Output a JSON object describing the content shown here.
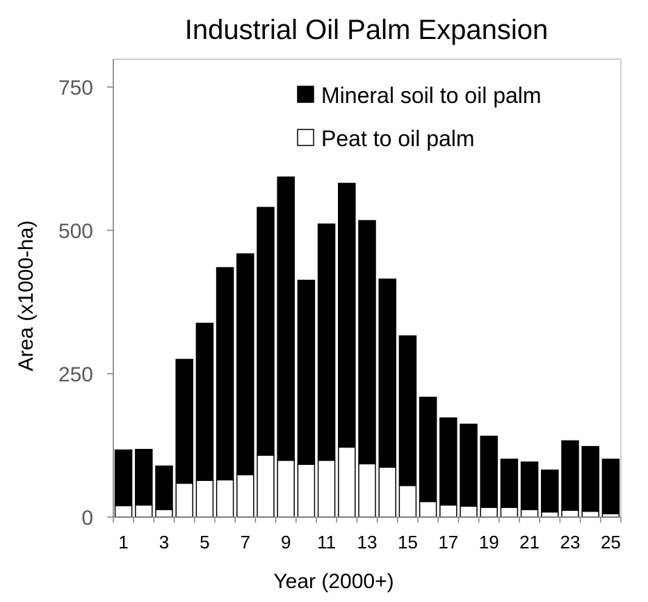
{
  "chart_data": {
    "type": "bar",
    "stacked": true,
    "title": "Industrial Oil Palm Expansion",
    "xlabel": "Year (2000+)",
    "ylabel": "Area (x1000-ha)",
    "ylim": [
      0,
      800
    ],
    "yticks": [
      0,
      250,
      500,
      750
    ],
    "x": [
      1,
      2,
      3,
      4,
      5,
      6,
      7,
      8,
      9,
      10,
      11,
      12,
      13,
      14,
      15,
      16,
      17,
      18,
      19,
      20,
      21,
      22,
      23,
      24,
      25
    ],
    "xtick_labels": [
      "1",
      "3",
      "5",
      "7",
      "9",
      "11",
      "13",
      "15",
      "17",
      "19",
      "21",
      "23",
      "25"
    ],
    "grid": false,
    "legend_position": "top-right",
    "series": [
      {
        "name": "Peat to oil palm",
        "color": "#ffffff",
        "values": [
          20,
          21,
          13,
          59,
          64,
          65,
          74,
          108,
          99,
          92,
          99,
          122,
          93,
          87,
          55,
          27,
          21,
          19,
          17,
          17,
          13,
          9,
          12,
          10,
          6
        ]
      },
      {
        "name": "Mineral soil to oil palm",
        "color": "#000000",
        "values": [
          97,
          97,
          76,
          216,
          274,
          370,
          385,
          432,
          494,
          321,
          412,
          460,
          424,
          328,
          261,
          182,
          152,
          143,
          124,
          84,
          83,
          73,
          121,
          113,
          95
        ]
      }
    ]
  }
}
